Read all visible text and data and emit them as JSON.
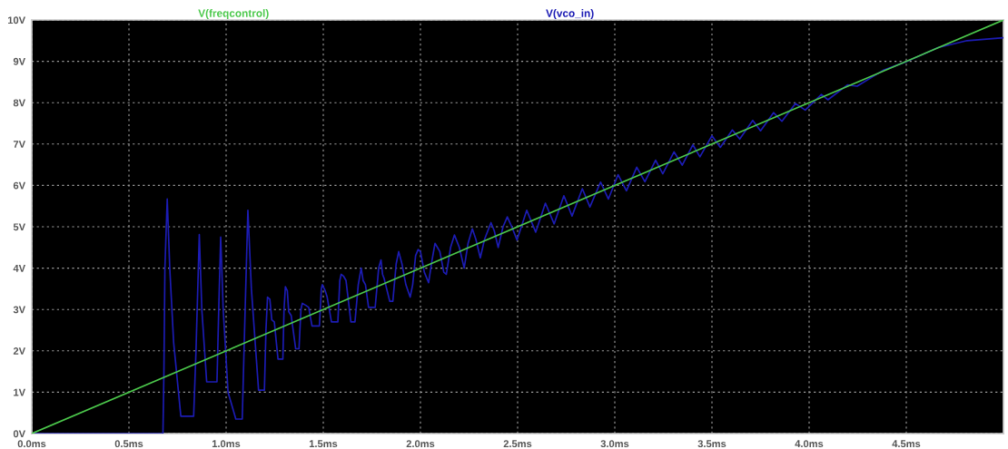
{
  "chart_data": {
    "type": "line",
    "xlim": [
      0,
      5
    ],
    "ylim": [
      0,
      10
    ],
    "xticks": [
      {
        "value": 0,
        "label": "0.0ms"
      },
      {
        "value": 0.5,
        "label": "0.5ms"
      },
      {
        "value": 1,
        "label": "1.0ms"
      },
      {
        "value": 1.5,
        "label": "1.5ms"
      },
      {
        "value": 2,
        "label": "2.0ms"
      },
      {
        "value": 2.5,
        "label": "2.5ms"
      },
      {
        "value": 3,
        "label": "3.0ms"
      },
      {
        "value": 3.5,
        "label": "3.5ms"
      },
      {
        "value": 4,
        "label": "4.0ms"
      },
      {
        "value": 4.5,
        "label": "4.5ms"
      }
    ],
    "yticks": [
      {
        "value": 0,
        "label": "0V"
      },
      {
        "value": 1,
        "label": "1V"
      },
      {
        "value": 2,
        "label": "2V"
      },
      {
        "value": 3,
        "label": "3V"
      },
      {
        "value": 4,
        "label": "4V"
      },
      {
        "value": 5,
        "label": "5V"
      },
      {
        "value": 6,
        "label": "6V"
      },
      {
        "value": 7,
        "label": "7V"
      },
      {
        "value": 8,
        "label": "8V"
      },
      {
        "value": 9,
        "label": "9V"
      },
      {
        "value": 10,
        "label": "10V"
      }
    ],
    "grid": true,
    "line_style": "solid",
    "legend": false,
    "series": [
      {
        "name": "V(freqcontrol)",
        "color": "#4cc94c",
        "x": [
          0,
          5
        ],
        "values": [
          0,
          10
        ]
      },
      {
        "name": "V(vco_in)",
        "color": "#1c1cb4",
        "x": [
          0,
          0.675,
          0.68,
          0.685,
          0.697,
          0.71,
          0.73,
          0.767,
          0.833,
          0.845,
          0.862,
          0.875,
          0.9,
          0.953,
          0.962,
          0.972,
          0.985,
          1.01,
          1.05,
          1.083,
          1.095,
          1.112,
          1.13,
          1.167,
          1.197,
          1.205,
          1.213,
          1.225,
          1.235,
          1.248,
          1.267,
          1.292,
          1.298,
          1.305,
          1.315,
          1.322,
          1.335,
          1.358,
          1.375,
          1.385,
          1.392,
          1.41,
          1.425,
          1.442,
          1.48,
          1.49,
          1.495,
          1.51,
          1.52,
          1.542,
          1.575,
          1.585,
          1.592,
          1.605,
          1.617,
          1.642,
          1.663,
          1.68,
          1.695,
          1.705,
          1.717,
          1.733,
          1.767,
          1.785,
          1.797,
          1.805,
          1.813,
          1.842,
          1.858,
          1.875,
          1.888,
          1.905,
          1.925,
          1.947,
          1.96,
          1.975,
          1.988,
          2.0,
          2.02,
          2.042,
          2.06,
          2.075,
          2.1,
          2.12,
          2.133,
          2.155,
          2.175,
          2.2,
          2.225,
          2.245,
          2.267,
          2.285,
          2.308,
          2.33,
          2.363,
          2.38,
          2.4,
          2.425,
          2.447,
          2.47,
          2.497,
          2.547,
          2.593,
          2.643,
          2.688,
          2.738,
          2.78,
          2.833,
          2.872,
          2.927,
          2.967,
          3.017,
          3.06,
          3.113,
          3.155,
          3.21,
          3.247,
          3.305,
          3.347,
          3.402,
          3.438,
          3.5,
          3.543,
          3.605,
          3.643,
          3.71,
          3.75,
          3.817,
          3.86,
          3.93,
          3.98,
          4.063,
          4.097,
          4.197,
          4.247,
          4.38,
          4.505,
          4.663,
          4.813,
          5.0
        ],
        "values": [
          0,
          0,
          1.5,
          4.0,
          5.67,
          4.0,
          2.2,
          0.42,
          0.42,
          2.0,
          4.81,
          3.0,
          1.25,
          1.25,
          3.0,
          4.75,
          3.0,
          1.0,
          0.35,
          0.35,
          2.5,
          5.4,
          3.5,
          1.05,
          1.05,
          2.5,
          3.3,
          3.25,
          2.75,
          2.7,
          1.8,
          1.8,
          3.0,
          3.55,
          3.45,
          2.95,
          2.85,
          2.05,
          2.05,
          3.0,
          3.15,
          3.1,
          3.05,
          2.6,
          2.6,
          3.5,
          3.6,
          3.45,
          3.3,
          2.7,
          2.7,
          3.7,
          3.85,
          3.8,
          3.7,
          2.7,
          2.7,
          3.6,
          4.0,
          3.7,
          3.6,
          3.05,
          3.05,
          4.0,
          4.2,
          3.85,
          3.75,
          3.2,
          3.2,
          4.1,
          4.4,
          4.1,
          3.6,
          3.3,
          3.6,
          4.3,
          4.45,
          4.4,
          3.9,
          3.65,
          4.2,
          4.6,
          4.4,
          3.9,
          3.85,
          4.5,
          4.8,
          4.5,
          4.0,
          4.6,
          4.95,
          4.7,
          4.25,
          4.7,
          5.1,
          4.9,
          4.5,
          5.0,
          5.24,
          5.0,
          4.68,
          5.4,
          4.87,
          5.57,
          5.07,
          5.75,
          5.26,
          5.92,
          5.48,
          6.08,
          5.67,
          6.26,
          5.87,
          6.44,
          6.09,
          6.61,
          6.28,
          6.81,
          6.49,
          6.98,
          6.69,
          7.2,
          6.92,
          7.34,
          7.12,
          7.57,
          7.32,
          7.76,
          7.55,
          7.98,
          7.82,
          8.2,
          8.07,
          8.43,
          8.4,
          8.78,
          9.0,
          9.33,
          9.5,
          9.57
        ]
      }
    ]
  }
}
